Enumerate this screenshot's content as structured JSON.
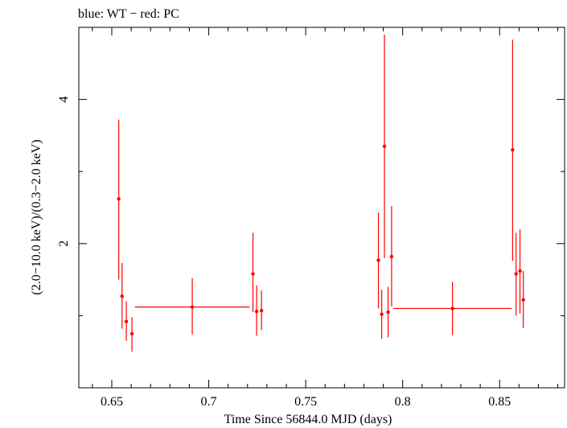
{
  "chart_data": {
    "type": "scatter",
    "title": "blue: WT − red: PC",
    "xlabel": "Time Since 56844.0 MJD (days)",
    "ylabel": "(2.0−10.0 keV)/(0.3−2.0 keV)",
    "xlim": [
      0.633,
      0.8835
    ],
    "ylim": [
      0.0,
      5.0
    ],
    "x_ticks": [
      {
        "value": 0.65,
        "label": "0.65"
      },
      {
        "value": 0.7,
        "label": "0.7"
      },
      {
        "value": 0.75,
        "label": "0.75"
      },
      {
        "value": 0.8,
        "label": "0.8"
      },
      {
        "value": 0.85,
        "label": "0.85"
      }
    ],
    "y_ticks": [
      {
        "value": 2,
        "label": "2"
      },
      {
        "value": 4,
        "label": "4"
      }
    ],
    "colors": {
      "series": "#ff0000",
      "axis": "#000000"
    },
    "series": [
      {
        "name": "PC",
        "color": "#ff0000",
        "points": [
          {
            "x": 0.6536,
            "y": 2.62,
            "xerr": 0.0006,
            "ylo": 1.5,
            "yhi": 3.72
          },
          {
            "x": 0.6553,
            "y": 1.27,
            "xerr": 0.0006,
            "ylo": 0.82,
            "yhi": 1.73
          },
          {
            "x": 0.6575,
            "y": 0.92,
            "xerr": 0.0006,
            "ylo": 0.65,
            "yhi": 1.2
          },
          {
            "x": 0.6604,
            "y": 0.75,
            "xerr": 0.0006,
            "ylo": 0.5,
            "yhi": 0.98
          },
          {
            "x": 0.6915,
            "y": 1.12,
            "xerr": 0.0296,
            "ylo": 0.74,
            "yhi": 1.52
          },
          {
            "x": 0.7228,
            "y": 1.58,
            "xerr": 0.0006,
            "ylo": 1.05,
            "yhi": 2.15
          },
          {
            "x": 0.7247,
            "y": 1.06,
            "xerr": 0.0006,
            "ylo": 0.72,
            "yhi": 1.42
          },
          {
            "x": 0.7272,
            "y": 1.07,
            "xerr": 0.0006,
            "ylo": 0.8,
            "yhi": 1.35
          },
          {
            "x": 0.7875,
            "y": 1.77,
            "xerr": 0.0006,
            "ylo": 1.1,
            "yhi": 2.43
          },
          {
            "x": 0.7892,
            "y": 1.02,
            "xerr": 0.0006,
            "ylo": 0.68,
            "yhi": 1.36
          },
          {
            "x": 0.7906,
            "y": 3.35,
            "xerr": 0.0006,
            "ylo": 1.8,
            "yhi": 4.9
          },
          {
            "x": 0.7925,
            "y": 1.05,
            "xerr": 0.0006,
            "ylo": 0.7,
            "yhi": 1.4
          },
          {
            "x": 0.7943,
            "y": 1.82,
            "xerr": 0.0006,
            "ylo": 1.13,
            "yhi": 2.52
          },
          {
            "x": 0.8257,
            "y": 1.1,
            "xerr": 0.0305,
            "ylo": 0.73,
            "yhi": 1.47
          },
          {
            "x": 0.8567,
            "y": 3.3,
            "xerr": 0.0006,
            "ylo": 1.76,
            "yhi": 4.83
          },
          {
            "x": 0.8585,
            "y": 1.58,
            "xerr": 0.0006,
            "ylo": 1.0,
            "yhi": 2.15
          },
          {
            "x": 0.8605,
            "y": 1.62,
            "xerr": 0.0006,
            "ylo": 1.03,
            "yhi": 2.2
          },
          {
            "x": 0.8622,
            "y": 1.22,
            "xerr": 0.0006,
            "ylo": 0.83,
            "yhi": 1.62
          }
        ]
      }
    ]
  }
}
